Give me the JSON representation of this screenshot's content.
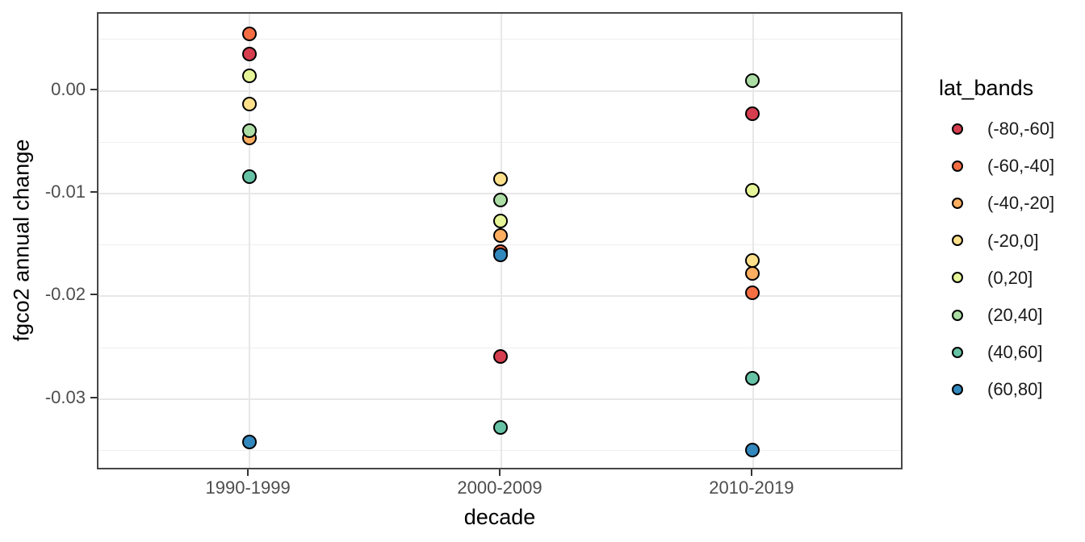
{
  "chart_data": {
    "type": "scatter",
    "title": "",
    "xlabel": "decade",
    "ylabel": "fgco2 annual change",
    "categories": [
      "1990-1999",
      "2000-2009",
      "2010-2019"
    ],
    "y_tick_labels": [
      "0.00",
      "-0.01",
      "-0.02",
      "-0.03"
    ],
    "y_tick_values": [
      0,
      -0.01,
      -0.02,
      -0.03
    ],
    "y_minor_values": [
      0.005,
      -0.005,
      -0.015,
      -0.025,
      -0.035
    ],
    "ylim": [
      -0.037,
      0.0075
    ],
    "grid": "on",
    "legend_position": "right",
    "legend_title": "lat_bands",
    "point_outline_color": "#000000",
    "series": [
      {
        "name": "(-80,-60]",
        "color": "#d53e4f",
        "values": [
          0.0035,
          -0.0259,
          -0.0023
        ]
      },
      {
        "name": "(-60,-40]",
        "color": "#f46d43",
        "values": [
          0.0055,
          -0.0157,
          -0.0197
        ]
      },
      {
        "name": "(-40,-20]",
        "color": "#fdae61",
        "values": [
          -0.0046,
          -0.0141,
          -0.0178
        ]
      },
      {
        "name": "(-20,0]",
        "color": "#fee08b",
        "values": [
          -0.0013,
          -0.0086,
          -0.0166
        ]
      },
      {
        "name": "(0,20]",
        "color": "#e6f598",
        "values": [
          0.0014,
          -0.0127,
          -0.0097
        ]
      },
      {
        "name": "(20,40]",
        "color": "#abdda4",
        "values": [
          -0.0039,
          -0.0107,
          0.0009
        ]
      },
      {
        "name": "(40,60]",
        "color": "#66c2a5",
        "values": [
          -0.0084,
          -0.0328,
          -0.028
        ]
      },
      {
        "name": "(60,80]",
        "color": "#3288bd",
        "values": [
          -0.0342,
          -0.016,
          -0.035
        ]
      }
    ]
  }
}
